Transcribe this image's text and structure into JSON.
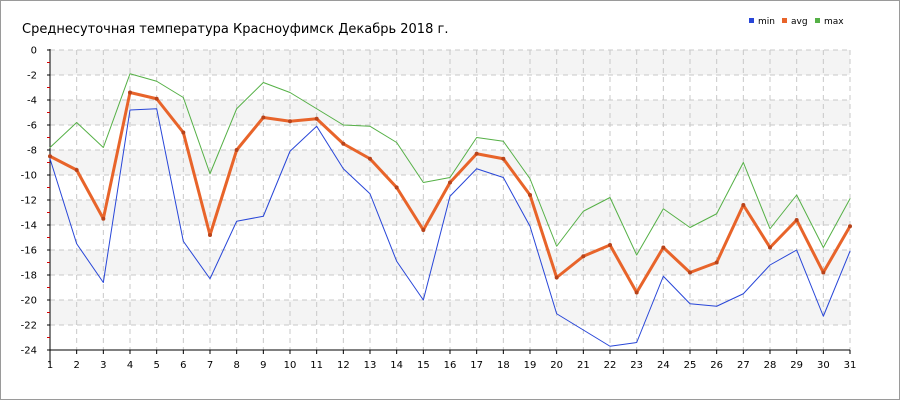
{
  "chart_data": {
    "type": "line",
    "title": "Среднесуточная температура Красноуфимск  Декабрь 2018 г.",
    "xlabel": "",
    "ylabel": "",
    "x": [
      1,
      2,
      3,
      4,
      5,
      6,
      7,
      8,
      9,
      10,
      11,
      12,
      13,
      14,
      15,
      16,
      17,
      18,
      19,
      20,
      21,
      22,
      23,
      24,
      25,
      26,
      27,
      28,
      29,
      30,
      31
    ],
    "xlim": [
      1,
      31
    ],
    "ylim": [
      -24,
      0
    ],
    "yticks": [
      0,
      -2,
      -4,
      -6,
      -8,
      -10,
      -12,
      -14,
      -16,
      -18,
      -20,
      -22,
      -24
    ],
    "grid": true,
    "legend_position": "top-right",
    "series": [
      {
        "name": "min",
        "color": "#2846d8",
        "stroke_width": 1,
        "values": [
          -8.7,
          -15.5,
          -18.6,
          -4.8,
          -4.7,
          -15.3,
          -18.3,
          -13.7,
          -13.3,
          -8.1,
          -6.1,
          -9.5,
          -11.5,
          -16.9,
          -20.0,
          -11.7,
          -9.5,
          -10.2,
          -14.1,
          -21.1,
          -22.4,
          -23.7,
          -23.4,
          -18.1,
          -20.3,
          -20.5,
          -19.5,
          -17.2,
          -16.0,
          -21.3,
          -16.1
        ]
      },
      {
        "name": "avg",
        "color": "#e8642a",
        "stroke_width": 3,
        "values": [
          -8.5,
          -9.6,
          -13.5,
          -3.4,
          -3.9,
          -6.6,
          -14.8,
          -8.0,
          -5.4,
          -5.7,
          -5.5,
          -7.5,
          -8.7,
          -11.0,
          -14.4,
          -10.6,
          -8.3,
          -8.7,
          -11.6,
          -18.2,
          -16.5,
          -15.6,
          -19.4,
          -15.8,
          -17.8,
          -17.0,
          -12.4,
          -15.8,
          -13.6,
          -17.8,
          -14.1
        ]
      },
      {
        "name": "max",
        "color": "#55b046",
        "stroke_width": 1,
        "values": [
          -7.8,
          -5.8,
          -7.8,
          -1.9,
          -2.5,
          -3.8,
          -9.9,
          -4.7,
          -2.6,
          -3.4,
          -4.7,
          -6.0,
          -6.1,
          -7.4,
          -10.6,
          -10.2,
          -7.0,
          -7.3,
          -10.3,
          -15.7,
          -12.9,
          -11.8,
          -16.4,
          -12.7,
          -14.2,
          -13.1,
          -9.0,
          -14.3,
          -11.6,
          -15.8,
          -11.9
        ]
      }
    ]
  }
}
